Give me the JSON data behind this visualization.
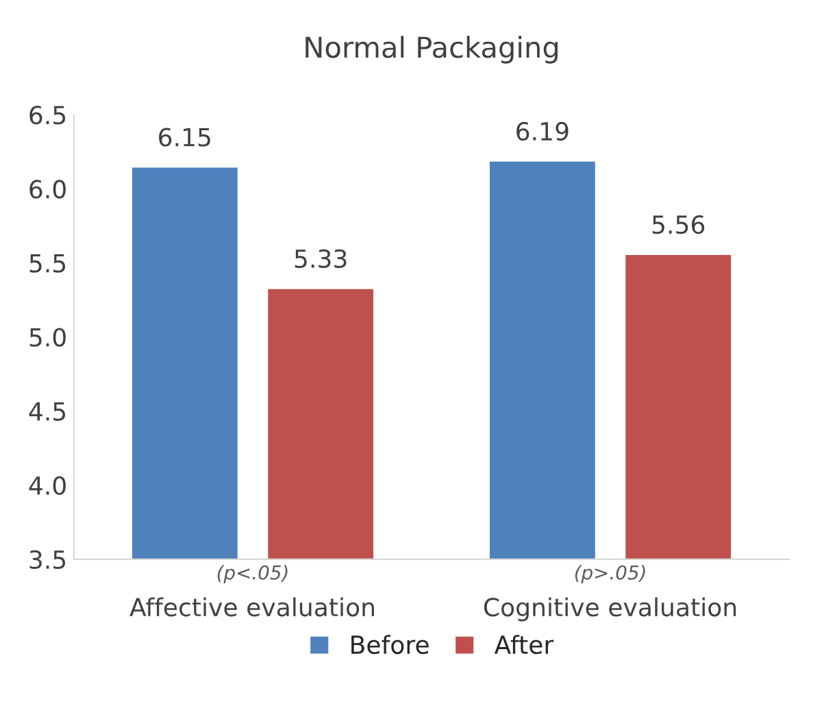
{
  "chart_data": {
    "type": "bar",
    "title": "Normal Packaging",
    "categories": [
      "Affective evaluation",
      "Cognitive evaluation"
    ],
    "series": [
      {
        "name": "Before",
        "color": "#4f81bd",
        "values": [
          6.15,
          6.19
        ]
      },
      {
        "name": "After",
        "color": "#c0504d",
        "values": [
          5.33,
          5.56
        ]
      }
    ],
    "ylim": [
      3.5,
      6.5
    ],
    "yticks": [
      "3.5",
      "4.0",
      "4.5",
      "5.0",
      "5.5",
      "6.0",
      "6.5"
    ],
    "data_labels": true,
    "legend": "bottom",
    "grid": false,
    "annotations": [
      "(p<.05)",
      "(p>.05)"
    ]
  }
}
